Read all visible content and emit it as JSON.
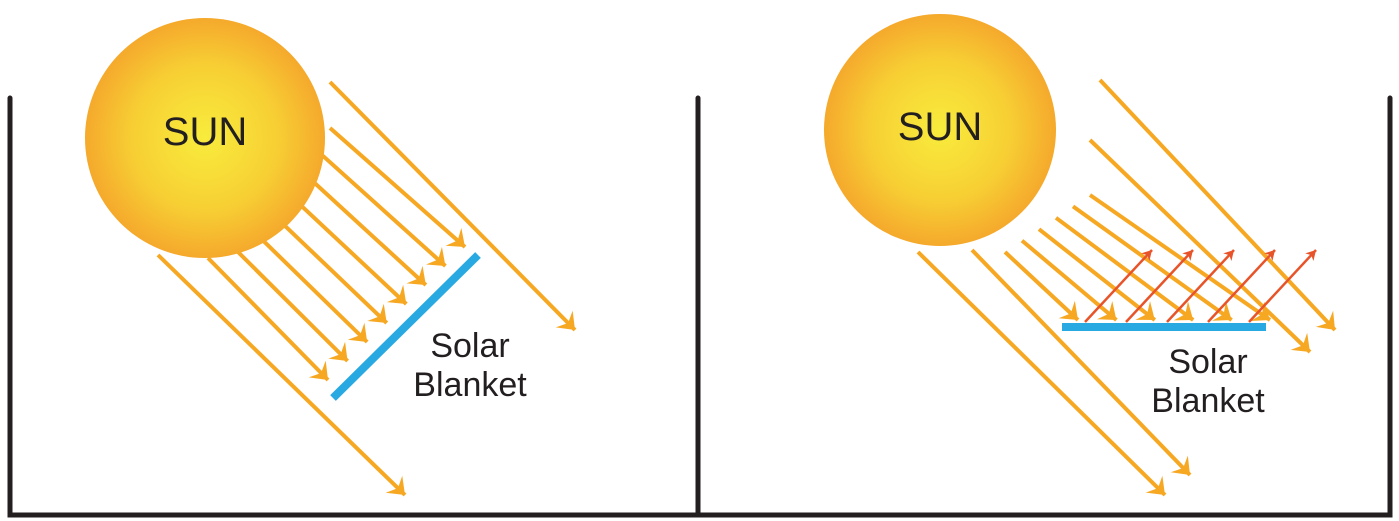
{
  "panels": [
    {
      "sun": "SUN",
      "blanket_label": [
        "Solar",
        "Blanket"
      ]
    },
    {
      "sun": "SUN",
      "blanket_label": [
        "Solar",
        "Blanket"
      ]
    }
  ]
}
